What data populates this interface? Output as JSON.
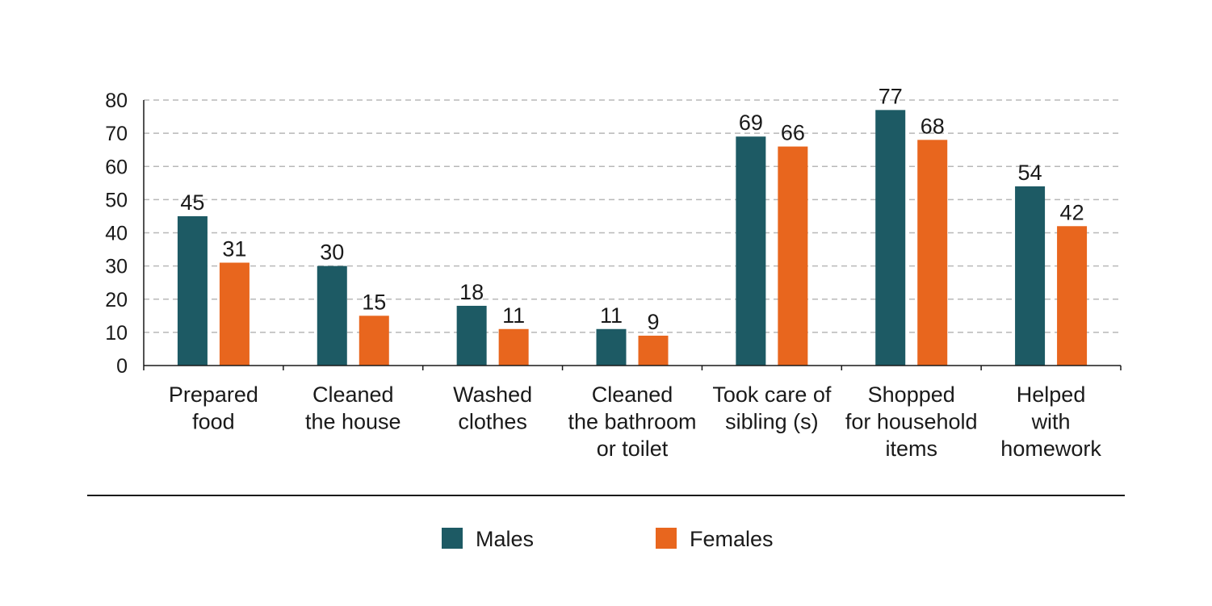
{
  "chart_data": {
    "type": "bar",
    "categories": [
      [
        "Prepared",
        "food"
      ],
      [
        "Cleaned",
        "the house"
      ],
      [
        "Washed",
        "clothes"
      ],
      [
        "Cleaned",
        "the bathroom",
        "or toilet"
      ],
      [
        "Took care of",
        "sibling (s)"
      ],
      [
        "Shopped",
        "for household",
        "items"
      ],
      [
        "Helped",
        "with",
        "homework"
      ]
    ],
    "series": [
      {
        "name": "Males",
        "color": "#1d5a64",
        "values": [
          45,
          30,
          18,
          11,
          69,
          77,
          54
        ]
      },
      {
        "name": "Females",
        "color": "#e8661e",
        "values": [
          31,
          15,
          11,
          9,
          66,
          68,
          42
        ]
      }
    ],
    "ylim": [
      0,
      80
    ],
    "yticks": [
      0,
      10,
      20,
      30,
      40,
      50,
      60,
      70,
      80
    ],
    "grid": true,
    "legend_position": "bottom-center",
    "title": "",
    "xlabel": "",
    "ylabel": ""
  }
}
